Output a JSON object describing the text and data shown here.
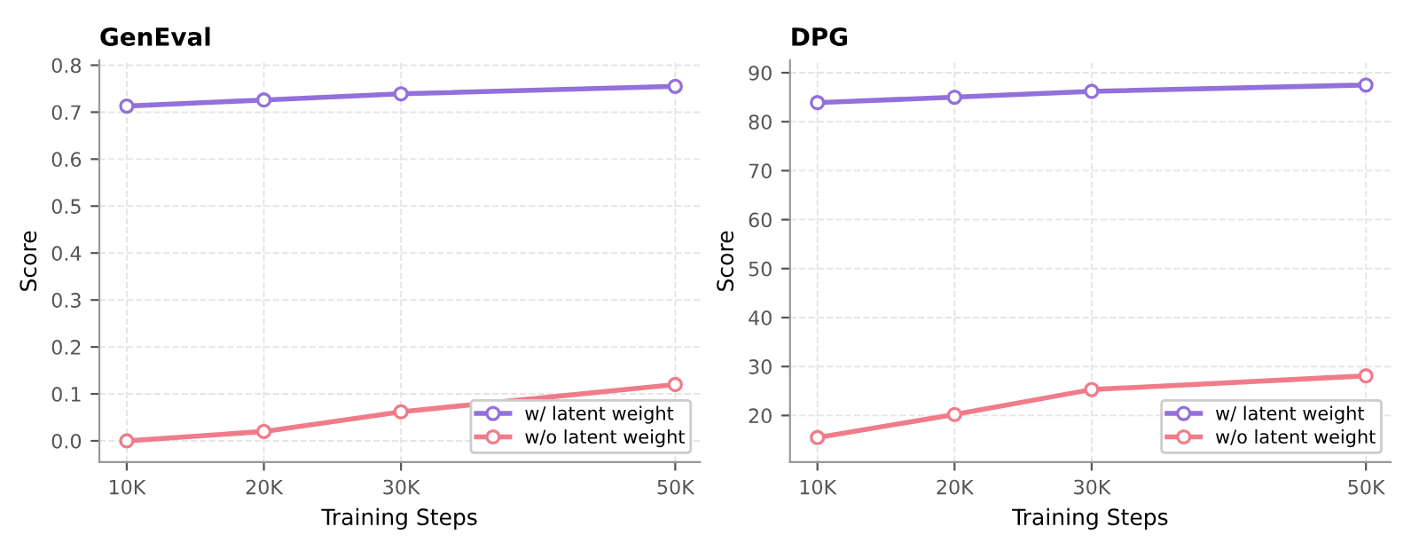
{
  "chart_data": [
    {
      "type": "line",
      "title": "GenEval",
      "xlabel": "Training Steps",
      "ylabel": "Score",
      "x": [
        10000,
        20000,
        30000,
        50000
      ],
      "series": [
        {
          "name": "w/ latent weight",
          "color": "#9370db",
          "values": [
            0.713,
            0.726,
            0.739,
            0.755
          ]
        },
        {
          "name": "w/o latent weight",
          "color": "#f07c8a",
          "values": [
            0.0,
            0.02,
            0.062,
            0.12
          ]
        }
      ],
      "xlim": [
        8000,
        51800
      ],
      "xticks": [
        {
          "value": 10000,
          "label": "10K"
        },
        {
          "value": 20000,
          "label": "20K"
        },
        {
          "value": 30000,
          "label": "30K"
        },
        {
          "value": 50000,
          "label": "50K"
        }
      ],
      "ylim": [
        -0.045,
        0.81
      ],
      "yticks": [
        {
          "value": 0.0,
          "label": "0.0"
        },
        0.1,
        0.2,
        0.3,
        0.4,
        0.5,
        0.6,
        0.7,
        0.8
      ],
      "grid": true,
      "legend": "bottom right",
      "marker": "circle",
      "line_style": "solid"
    },
    {
      "type": "line",
      "title": "DPG",
      "xlabel": "Training Steps",
      "ylabel": "Score",
      "x": [
        10000,
        20000,
        30000,
        50000
      ],
      "series": [
        {
          "name": "w/ latent weight",
          "color": "#9370db",
          "values": [
            83.9,
            85.0,
            86.2,
            87.5
          ]
        },
        {
          "name": "w/o latent weight",
          "color": "#f07c8a",
          "values": [
            15.5,
            20.2,
            25.3,
            28.1
          ]
        }
      ],
      "xlim": [
        8000,
        51800
      ],
      "xticks": [
        {
          "value": 10000,
          "label": "10K"
        },
        {
          "value": 20000,
          "label": "20K"
        },
        {
          "value": 30000,
          "label": "30K"
        },
        {
          "value": 50000,
          "label": "50K"
        }
      ],
      "ylim": [
        10.5,
        92.5
      ],
      "yticks": [
        20,
        30,
        40,
        50,
        60,
        70,
        80,
        90
      ],
      "grid": true,
      "legend": "bottom right",
      "marker": "circle",
      "line_style": "solid"
    }
  ]
}
